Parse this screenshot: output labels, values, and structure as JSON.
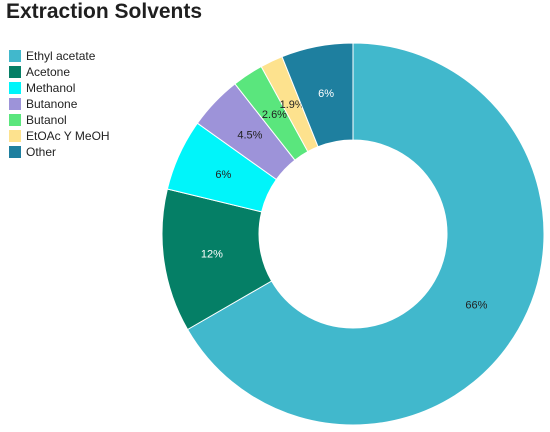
{
  "chart_data": {
    "type": "pie",
    "title": "Extraction Solvents",
    "categories": [
      "Ethyl acetate",
      "Acetone",
      "Methanol",
      "Butanone",
      "Butanol",
      "EtOAc Y MeOH",
      "Other"
    ],
    "values": [
      66,
      12,
      6,
      4.5,
      2.6,
      1.9,
      6
    ],
    "labels": [
      "66%",
      "12%",
      "6%",
      "4.5%",
      "2.6%",
      "1.9%",
      "6%"
    ],
    "colors": [
      "#41b8cc",
      "#057f66",
      "#00f5fa",
      "#9d93d9",
      "#5ae67d",
      "#fde28e",
      "#1e7f9f"
    ],
    "label_colors": [
      "#222222",
      "#ffffff",
      "#222222",
      "#222222",
      "#222222",
      "#222222",
      "#ffffff"
    ],
    "legend": "top-left",
    "donut": true
  }
}
